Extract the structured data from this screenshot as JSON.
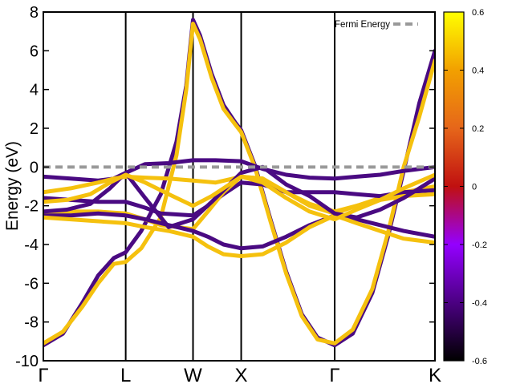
{
  "chart_data": {
    "type": "line",
    "title": "",
    "xlabel": "",
    "ylabel": "Energy (eV)",
    "ylim": [
      -10,
      8
    ],
    "y_ticks": [
      -10,
      -8,
      -6,
      -4,
      -2,
      0,
      2,
      4,
      6,
      8
    ],
    "x_path_labels": [
      "Γ",
      "L",
      "W",
      "X",
      "Γ",
      "K"
    ],
    "x_path_positions": [
      0,
      0.2103,
      0.3822,
      0.5052,
      0.7439,
      1.0
    ],
    "fermi_energy": {
      "label": "Fermi Energy",
      "value": 0,
      "color": "#999999",
      "legend_position": "top-right"
    },
    "colorbar": {
      "min": -0.6,
      "max": 0.6,
      "ticks": [
        "-0.6",
        "-0.4",
        "-0.2",
        "0",
        "0.2",
        "0.4",
        "0.6"
      ],
      "stops": [
        "#000000",
        "#4b0082",
        "#9400ff",
        "#c01010",
        "#e6661a",
        "#f2a000",
        "#ffff00"
      ]
    },
    "band_colors": {
      "yellow": "#f5c10e",
      "purple": "#4a0a82"
    },
    "series": [
      {
        "color": "purple",
        "x": [
          0.0,
          0.05,
          0.1,
          0.14,
          0.18,
          0.2103,
          0.25,
          0.3,
          0.34,
          0.365,
          0.3822,
          0.4,
          0.43,
          0.46,
          0.49,
          0.5052,
          0.54,
          0.58,
          0.62,
          0.66,
          0.7,
          0.7439,
          0.79,
          0.84,
          0.88,
          0.92,
          0.96,
          1.0
        ],
        "y": [
          -9.2,
          -8.6,
          -7.0,
          -5.6,
          -4.7,
          -4.4,
          -3.3,
          -1.4,
          1.3,
          4.2,
          7.6,
          6.8,
          4.8,
          3.2,
          2.3,
          1.9,
          0.1,
          -2.7,
          -5.4,
          -7.6,
          -8.8,
          -9.2,
          -8.6,
          -6.5,
          -3.6,
          -0.2,
          3.3,
          6.0
        ]
      },
      {
        "color": "yellow",
        "x": [
          0.0,
          0.05,
          0.1,
          0.14,
          0.18,
          0.2103,
          0.25,
          0.3,
          0.34,
          0.365,
          0.3822,
          0.4,
          0.43,
          0.46,
          0.49,
          0.5052,
          0.54,
          0.58,
          0.62,
          0.66,
          0.7,
          0.7439,
          0.79,
          0.84,
          0.88,
          0.92,
          0.96,
          1.0
        ],
        "y": [
          -9.1,
          -8.5,
          -7.2,
          -6.0,
          -5.0,
          -4.9,
          -4.2,
          -2.6,
          0.6,
          4.0,
          7.4,
          6.6,
          4.6,
          3.0,
          2.2,
          1.8,
          0.0,
          -2.8,
          -5.5,
          -7.7,
          -8.9,
          -9.1,
          -8.4,
          -6.3,
          -3.4,
          0.0,
          2.6,
          5.5
        ]
      },
      {
        "color": "purple",
        "x": [
          0.0,
          0.07,
          0.14,
          0.18,
          0.2103,
          0.26,
          0.32,
          0.3822,
          0.44,
          0.5052,
          0.56,
          0.62,
          0.68,
          0.7439,
          0.8,
          0.86,
          0.92,
          1.0
        ],
        "y": [
          -0.5,
          -0.6,
          -0.7,
          -0.6,
          -0.3,
          0.15,
          0.2,
          0.35,
          0.35,
          0.3,
          -0.1,
          -0.4,
          -0.55,
          -0.6,
          -0.5,
          -0.4,
          -0.2,
          0.0
        ]
      },
      {
        "color": "yellow",
        "x": [
          0.0,
          0.07,
          0.14,
          0.18,
          0.2103,
          0.26,
          0.32,
          0.3822,
          0.44,
          0.5052,
          0.56,
          0.62,
          0.68,
          0.7439,
          0.8,
          0.86,
          0.92,
          1.0
        ],
        "y": [
          -1.3,
          -1.1,
          -0.8,
          -0.6,
          -0.5,
          -0.55,
          -0.6,
          -0.7,
          -0.8,
          -0.5,
          -0.6,
          -1.3,
          -1.9,
          -2.3,
          -2.0,
          -1.6,
          -1.3,
          -1.0
        ]
      },
      {
        "color": "purple",
        "x": [
          0.0,
          0.07,
          0.14,
          0.2103,
          0.26,
          0.3,
          0.3822,
          0.42,
          0.46,
          0.5052,
          0.56,
          0.62,
          0.68,
          0.7439,
          0.8,
          0.86,
          0.92,
          1.0
        ],
        "y": [
          -1.6,
          -1.7,
          -1.8,
          -1.8,
          -2.1,
          -2.4,
          -2.5,
          -2.0,
          -1.4,
          -0.8,
          -0.9,
          -1.3,
          -1.3,
          -1.3,
          -1.4,
          -1.5,
          -1.3,
          -1.2
        ]
      },
      {
        "color": "yellow",
        "x": [
          0.0,
          0.07,
          0.14,
          0.2103,
          0.26,
          0.3,
          0.3822,
          0.42,
          0.46,
          0.5052,
          0.56,
          0.62,
          0.68,
          0.7439,
          0.8,
          0.86,
          0.92,
          1.0
        ],
        "y": [
          -2.4,
          -2.3,
          -2.3,
          -2.4,
          -2.7,
          -3.0,
          -3.2,
          -2.3,
          -1.3,
          -0.5,
          -0.6,
          -1.3,
          -2.0,
          -2.4,
          -2.0,
          -1.7,
          -1.5,
          -1.4
        ]
      },
      {
        "color": "purple",
        "x": [
          0.0,
          0.07,
          0.14,
          0.2103,
          0.26,
          0.32,
          0.3822,
          0.42,
          0.46,
          0.5052,
          0.56,
          0.62,
          0.68,
          0.7439,
          0.8,
          0.86,
          0.92,
          1.0
        ],
        "y": [
          -2.5,
          -2.5,
          -2.4,
          -2.5,
          -2.7,
          -3.0,
          -3.3,
          -3.6,
          -4.0,
          -4.2,
          -4.1,
          -3.6,
          -3.0,
          -2.5,
          -2.7,
          -3.0,
          -3.3,
          -3.6
        ]
      },
      {
        "color": "yellow",
        "x": [
          0.0,
          0.07,
          0.14,
          0.2103,
          0.26,
          0.32,
          0.3822,
          0.42,
          0.46,
          0.5052,
          0.56,
          0.62,
          0.68,
          0.7439,
          0.8,
          0.86,
          0.92,
          1.0
        ],
        "y": [
          -2.6,
          -2.7,
          -2.8,
          -2.9,
          -3.1,
          -3.3,
          -3.6,
          -4.1,
          -4.5,
          -4.6,
          -4.5,
          -3.9,
          -3.1,
          -2.5,
          -2.9,
          -3.3,
          -3.7,
          -3.9
        ]
      },
      {
        "color": "purple",
        "x": [
          0.0,
          0.06,
          0.12,
          0.17,
          0.2103,
          0.26,
          0.32,
          0.3822,
          0.43,
          0.5052,
          0.56,
          0.62,
          0.68,
          0.7439,
          0.8,
          0.86,
          0.92,
          1.0
        ],
        "y": [
          -2.3,
          -2.2,
          -1.9,
          -1.1,
          -0.3,
          -1.6,
          -3.1,
          -2.7,
          -1.8,
          -0.3,
          0.0,
          -0.9,
          -1.5,
          -2.4,
          -2.6,
          -2.2,
          -1.6,
          -0.6
        ]
      },
      {
        "color": "yellow",
        "x": [
          0.0,
          0.06,
          0.12,
          0.17,
          0.2103,
          0.26,
          0.32,
          0.3822,
          0.43,
          0.5052,
          0.56,
          0.62,
          0.68,
          0.7439,
          0.8,
          0.86,
          0.92,
          1.0
        ],
        "y": [
          -1.8,
          -1.7,
          -1.4,
          -0.8,
          -0.4,
          -0.8,
          -1.4,
          -2.0,
          -1.5,
          -0.5,
          -0.8,
          -1.6,
          -2.3,
          -2.7,
          -2.2,
          -1.7,
          -1.1,
          -0.4
        ]
      }
    ]
  }
}
